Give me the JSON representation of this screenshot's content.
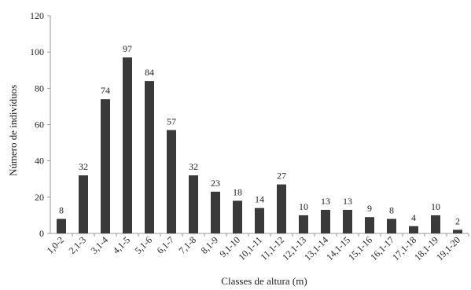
{
  "chart_data": {
    "type": "bar",
    "xlabel": "Classes de altura (m)",
    "ylabel": "Número de indivíduos",
    "ylim": [
      0,
      120
    ],
    "yticks": [
      0,
      20,
      40,
      60,
      80,
      100,
      120
    ],
    "categories": [
      "1,0-2",
      "2,1-3",
      "3,1-4",
      "4,1-5",
      "5,1-6",
      "6,1-7",
      "7,1-8",
      "8,1-9",
      "9,1-10",
      "10,1-11",
      "11,1-12",
      "12,1-13",
      "13,1-14",
      "14,1-15",
      "15,1-16",
      "16,1-17",
      "17,1-18",
      "18,1-19",
      "19,1-20"
    ],
    "values": [
      8,
      32,
      74,
      97,
      84,
      57,
      32,
      23,
      18,
      14,
      27,
      10,
      13,
      13,
      9,
      8,
      4,
      10,
      2
    ],
    "grid": false,
    "colors": {
      "bar": "#3a3a3a",
      "axis": "#9a9a9a"
    }
  }
}
